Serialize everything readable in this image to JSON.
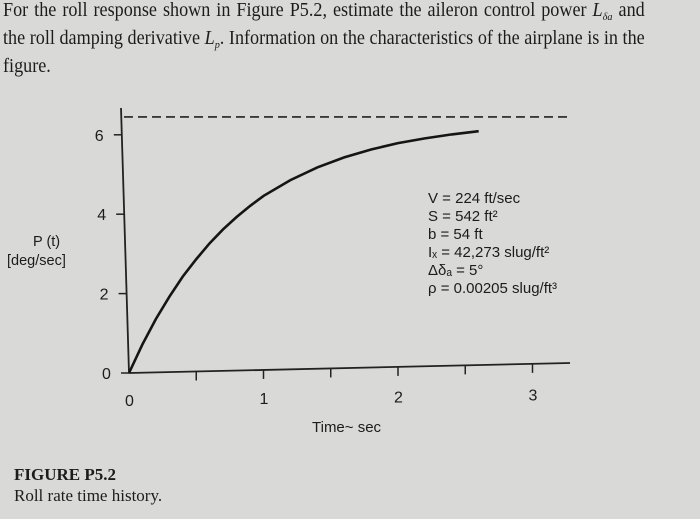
{
  "problem": {
    "line1": "For the roll response shown in Figure P5.2, estimate the aileron control power ",
    "symbol_L_delta": "L",
    "symbol_L_delta_sub": "δa",
    "line2_a": "and the roll damping derivative ",
    "symbol_Lp": "L",
    "symbol_Lp_sub": "p",
    "line2_b": ". Information on the characteristics of the airplane is in the figure."
  },
  "figure": {
    "label": "FIGURE P5.2",
    "caption": "Roll rate time history.",
    "specs": [
      {
        "text": "V = 224 ft/sec"
      },
      {
        "text": "S = 542 ft²"
      },
      {
        "text": "b = 54 ft"
      },
      {
        "text": "Iₓ = 42,273 slug/ft²"
      },
      {
        "text": "Δδₐ = 5°"
      },
      {
        "text": "ρ = 0.00205 slug/ft³"
      }
    ]
  },
  "chart_data": {
    "type": "line",
    "title": "Roll rate time history",
    "xlabel": "Time~ sec",
    "ylabel_line1": "P (t)",
    "ylabel_line2": "[deg/sec]",
    "xlim": [
      0,
      3.3
    ],
    "ylim": [
      0,
      6.6
    ],
    "x_ticks": [
      0,
      0.5,
      1,
      1.5,
      2,
      2.5,
      3
    ],
    "x_tick_labels": [
      "0",
      "",
      "1",
      "",
      "2",
      "",
      "3"
    ],
    "y_ticks": [
      0,
      2,
      4,
      6
    ],
    "y_tick_labels": [
      "0",
      "2",
      "4",
      "6"
    ],
    "grid": false,
    "steady_state_dashed": 6.45,
    "series": [
      {
        "name": "P(t)",
        "x": [
          0,
          0.1,
          0.2,
          0.3,
          0.4,
          0.5,
          0.6,
          0.7,
          0.8,
          0.9,
          1.0,
          1.2,
          1.4,
          1.6,
          1.8,
          2.0,
          2.2,
          2.4,
          2.6
        ],
        "values": [
          0,
          0.72,
          1.36,
          1.92,
          2.43,
          2.87,
          3.27,
          3.62,
          3.93,
          4.21,
          4.46,
          4.86,
          5.18,
          5.43,
          5.63,
          5.79,
          5.91,
          6.01,
          6.09
        ]
      }
    ]
  }
}
